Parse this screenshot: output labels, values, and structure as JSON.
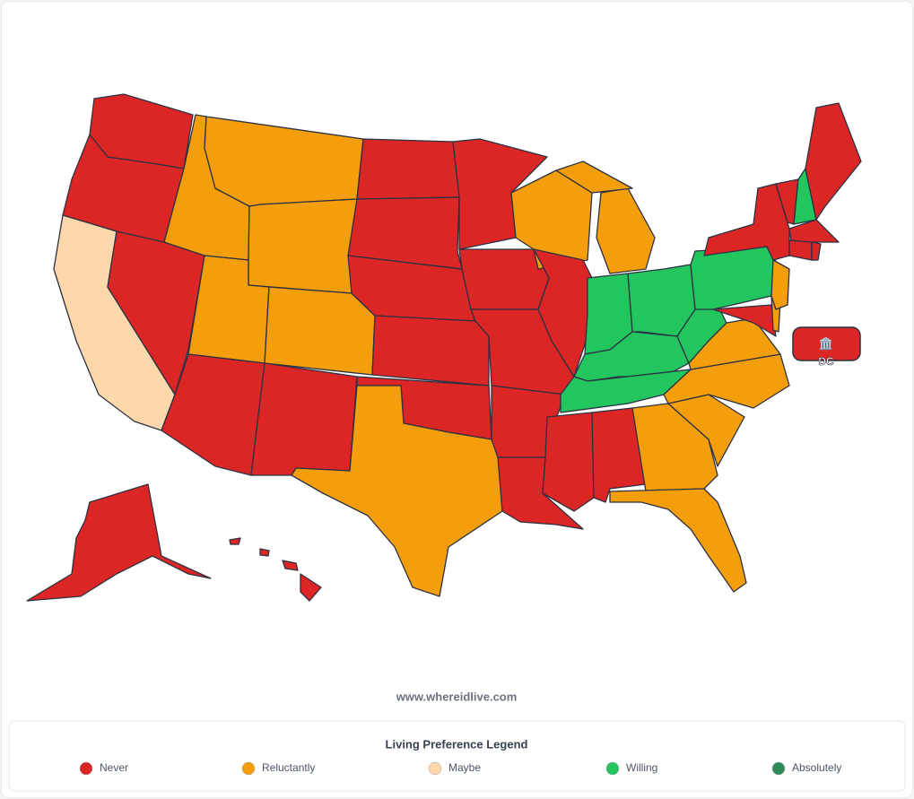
{
  "map": {
    "dc_badge": {
      "icon": "🏛️",
      "label": "DC"
    }
  },
  "watermark": "www.whereidlive.com",
  "legend": {
    "title": "Living Preference Legend",
    "items": [
      {
        "label": "Never",
        "color": "#dc2626"
      },
      {
        "label": "Reluctantly",
        "color": "#f59e0b"
      },
      {
        "label": "Maybe",
        "color": "#fed7aa"
      },
      {
        "label": "Willing",
        "color": "#22c55e"
      },
      {
        "label": "Absolutely",
        "color": "#2e8b57"
      }
    ]
  }
}
